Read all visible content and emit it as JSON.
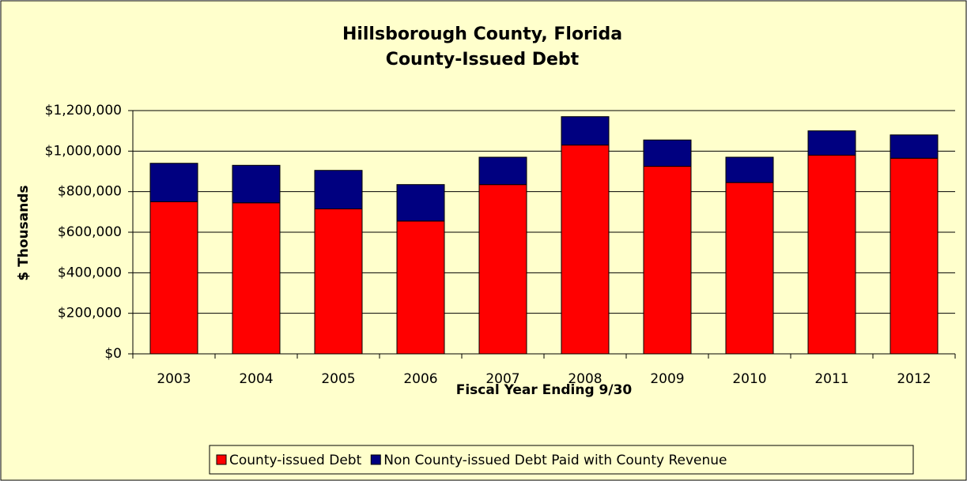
{
  "chart_data": {
    "type": "stacked_bar",
    "title": "Hillsborough County, Florida",
    "subtitle": "County-Issued Debt",
    "x_label": "Fiscal Year Ending 9/30",
    "y_label": "$ Thousands",
    "categories": [
      "2003",
      "2004",
      "2005",
      "2006",
      "2007",
      "2008",
      "2009",
      "2010",
      "2011",
      "2012"
    ],
    "series": [
      {
        "name": "County-issued Debt",
        "color": "#ff0000",
        "values": [
          750000,
          745000,
          715000,
          655000,
          835000,
          1030000,
          925000,
          845000,
          980000,
          965000
        ]
      },
      {
        "name": "Non County-issued Debt Paid with County Revenue",
        "color": "#000080",
        "values": [
          190000,
          185000,
          190000,
          180000,
          135000,
          140000,
          130000,
          125000,
          120000,
          115000
        ]
      }
    ],
    "ylim": [
      0,
      1200000
    ],
    "yticks": [
      {
        "value": 0,
        "label": "$0"
      },
      {
        "value": 200000,
        "label": "$200,000"
      },
      {
        "value": 400000,
        "label": "$400,000"
      },
      {
        "value": 600000,
        "label": "$600,000"
      },
      {
        "value": 800000,
        "label": "$800,000"
      },
      {
        "value": 1000000,
        "label": "$1,000,000"
      },
      {
        "value": 1200000,
        "label": "$1,200,000"
      }
    ],
    "grid": true,
    "legend": "bottom"
  }
}
